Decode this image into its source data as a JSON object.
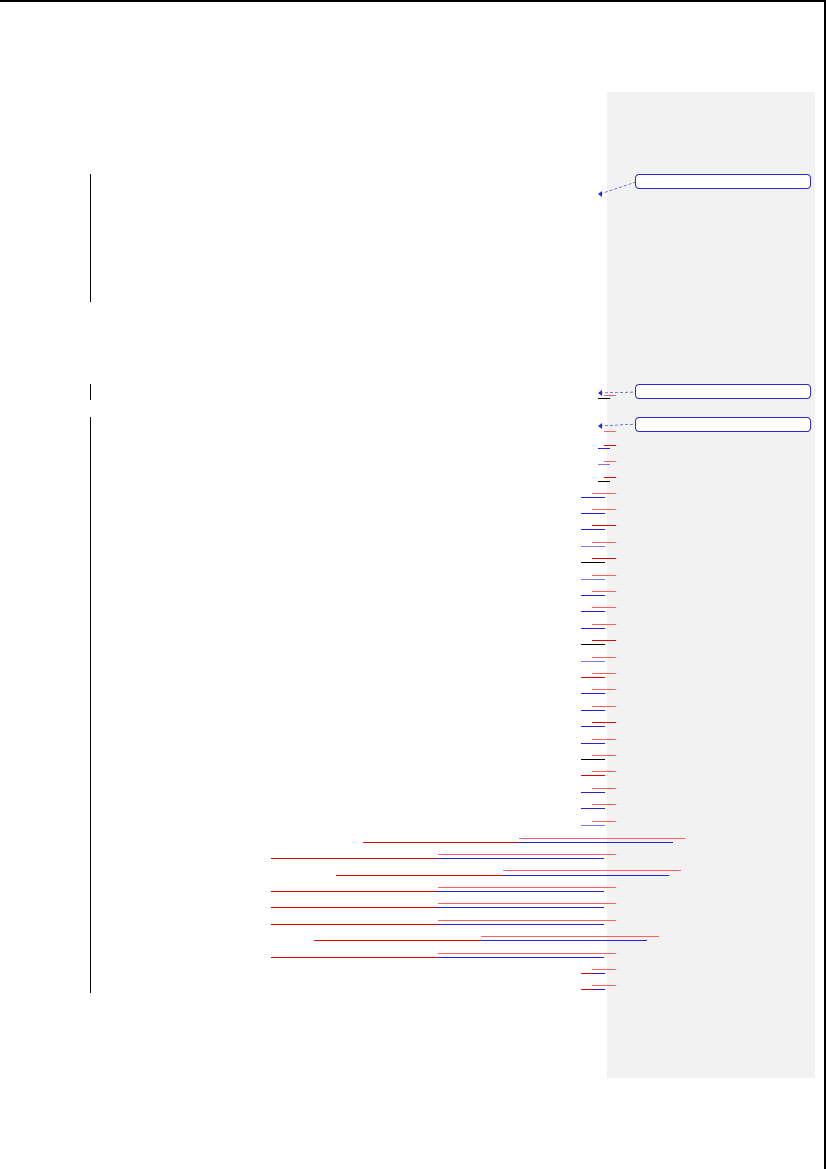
{
  "document": {
    "colors": {
      "deletion": "#ff0000",
      "insertion": "#0000ff",
      "markup_pane": "#f2f2f2",
      "balloon_border": "#2a2ad6"
    },
    "comments": [
      {
        "text": ""
      },
      {
        "text": ""
      },
      {
        "text": ""
      }
    ]
  }
}
